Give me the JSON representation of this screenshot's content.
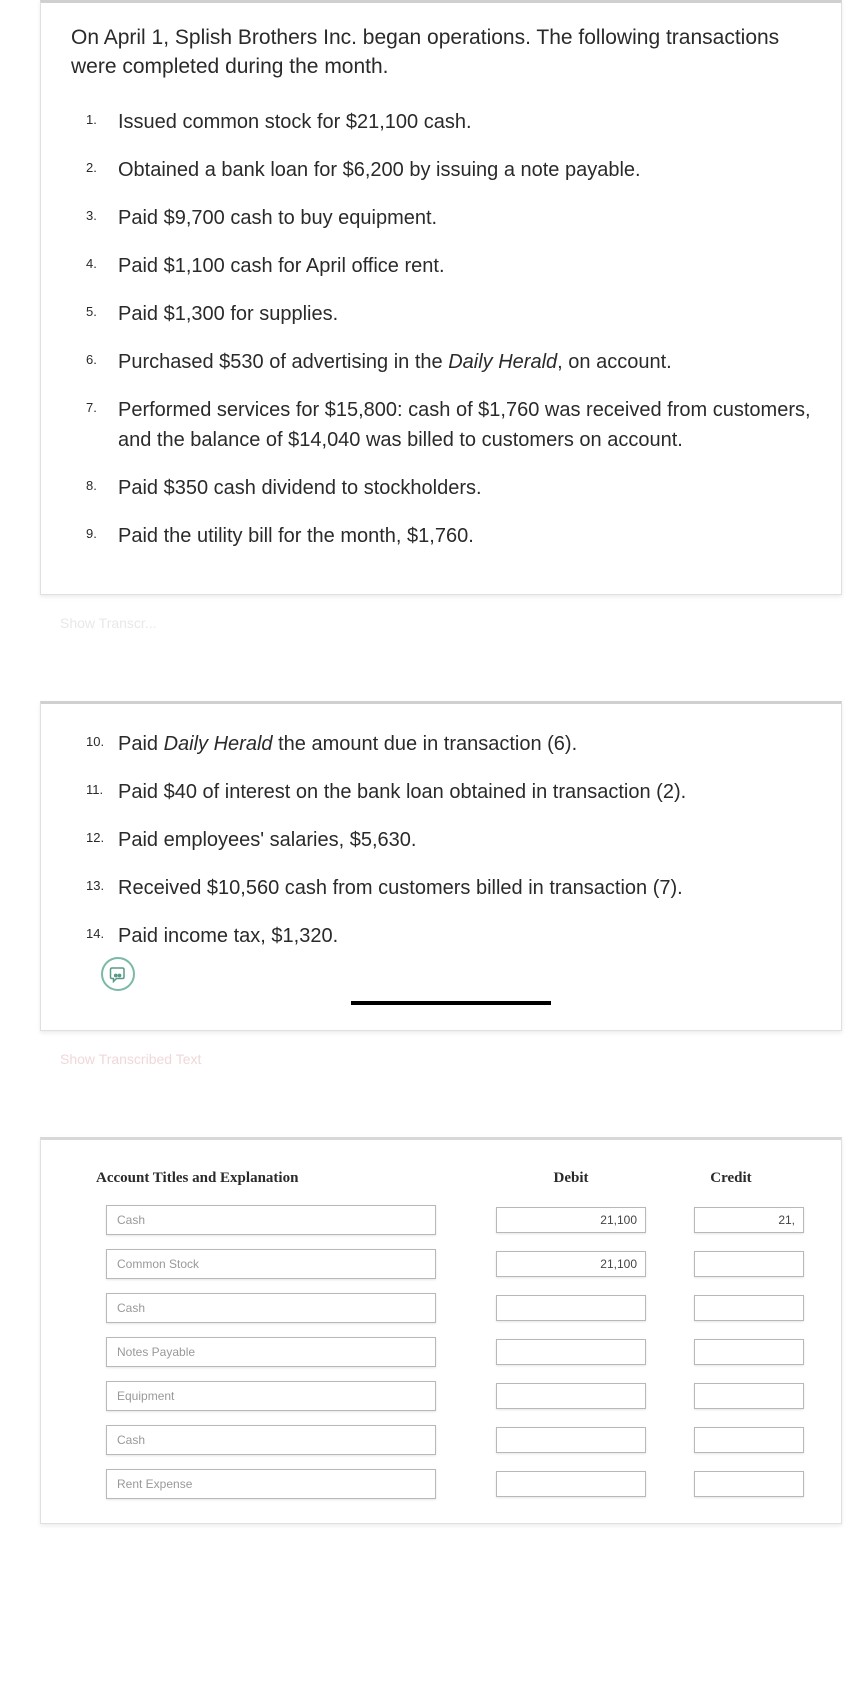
{
  "card1": {
    "intro": "On April 1, Splish Brothers Inc. began operations. The following transactions were completed during the month.",
    "items": [
      {
        "n": "1.",
        "t": "Issued common stock for $21,100 cash."
      },
      {
        "n": "2.",
        "t": "Obtained a bank loan for $6,200 by issuing a note payable."
      },
      {
        "n": "3.",
        "t": "Paid $9,700 cash to buy equipment."
      },
      {
        "n": "4.",
        "t": "Paid $1,100 cash for April office rent."
      },
      {
        "n": "5.",
        "t": "Paid $1,300 for supplies."
      },
      {
        "n": "6.",
        "html": "Purchased $530 of advertising in the <span class='italic'>Daily Herald</span>, on account."
      },
      {
        "n": "7.",
        "t": "Performed services for $15,800: cash of $1,760 was received from customers, and the balance of $14,040 was billed to customers on account."
      },
      {
        "n": "8.",
        "t": "Paid $350 cash dividend to stockholders."
      },
      {
        "n": "9.",
        "t": "Paid the utility bill for the month, $1,760."
      }
    ],
    "ghost": "Show Transcr..."
  },
  "card2": {
    "items": [
      {
        "n": "10.",
        "html": "Paid <span class='italic'>Daily Herald</span> the amount due in transaction (6)."
      },
      {
        "n": "11.",
        "t": "Paid $40 of interest on the bank loan obtained in transaction (2)."
      },
      {
        "n": "12.",
        "t": "Paid employees' salaries, $5,630."
      },
      {
        "n": "13.",
        "t": "Received $10,560 cash from customers billed in transaction (7)."
      },
      {
        "n": "14.",
        "t": "Paid income tax, $1,320."
      }
    ],
    "ghost": "Show Transcribed Text"
  },
  "table": {
    "headers": {
      "acc": "Account Titles and Explanation",
      "deb": "Debit",
      "cre": "Credit"
    },
    "rows": [
      {
        "acc": "Cash",
        "deb": "21,100",
        "cre": "21,"
      },
      {
        "acc": "Common Stock",
        "deb": "21,100",
        "cre": ""
      },
      {
        "acc": "Cash",
        "deb": "",
        "cre": ""
      },
      {
        "acc": "Notes Payable",
        "deb": "",
        "cre": ""
      },
      {
        "acc": "Equipment",
        "deb": "",
        "cre": ""
      },
      {
        "acc": "Cash",
        "deb": "",
        "cre": ""
      },
      {
        "acc": "Rent Expense",
        "deb": "",
        "cre": ""
      }
    ]
  }
}
